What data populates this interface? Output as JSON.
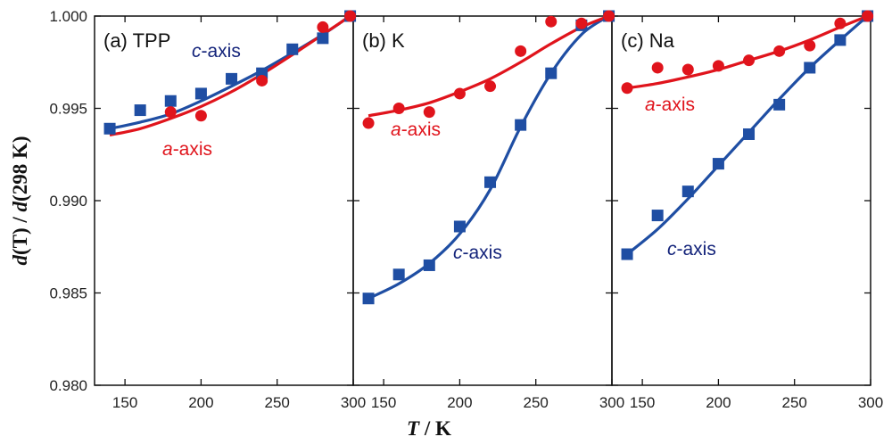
{
  "colors": {
    "a_axis": "#e0141c",
    "c_axis": "#1f4ea3",
    "c_label": "#13237a",
    "frame": "#111111"
  },
  "axes": {
    "xlabel_var": "T",
    "xlabel_unit": " / K",
    "ylabel_d1": "d",
    "ylabel_T": "(T)",
    "ylabel_sep": " / ",
    "ylabel_d2": "d",
    "ylabel_ref": "(298 K)",
    "ylim": [
      0.98,
      1.0
    ],
    "yticks": [
      "0.980",
      "0.985",
      "0.990",
      "0.995",
      "1.000"
    ],
    "ytick_values": [
      0.98,
      0.985,
      0.99,
      0.995,
      1.0
    ]
  },
  "chart_data": [
    {
      "type": "scatter",
      "panel": "(a) TPP",
      "xlim": [
        130,
        300
      ],
      "xticks": [
        "150",
        "200",
        "250",
        "300"
      ],
      "xtick_values": [
        150,
        200,
        250,
        300
      ],
      "series": [
        {
          "name": "c-axis",
          "marker": "square",
          "points": [
            [
              140,
              0.9939
            ],
            [
              160,
              0.9949
            ],
            [
              180,
              0.9954
            ],
            [
              200,
              0.9958
            ],
            [
              220,
              0.9966
            ],
            [
              240,
              0.9969
            ],
            [
              260,
              0.9982
            ],
            [
              280,
              0.9988
            ],
            [
              298,
              1.0
            ]
          ],
          "fit": [
            [
              140,
              0.9939
            ],
            [
              160,
              0.99425
            ],
            [
              180,
              0.9947
            ],
            [
              200,
              0.9954
            ],
            [
              220,
              0.9962
            ],
            [
              240,
              0.99705
            ],
            [
              260,
              0.998
            ],
            [
              280,
              0.999
            ],
            [
              298,
              1.0
            ]
          ]
        },
        {
          "name": "a-axis",
          "marker": "circle",
          "points": [
            [
              180,
              0.9948
            ],
            [
              200,
              0.9946
            ],
            [
              240,
              0.9965
            ],
            [
              280,
              0.9994
            ],
            [
              298,
              1.0
            ]
          ],
          "fit": [
            [
              140,
              0.99355
            ],
            [
              160,
              0.9939
            ],
            [
              180,
              0.99445
            ],
            [
              200,
              0.9951
            ],
            [
              220,
              0.9959
            ],
            [
              240,
              0.99685
            ],
            [
              260,
              0.9979
            ],
            [
              280,
              0.999
            ],
            [
              298,
              1.0
            ]
          ]
        }
      ],
      "labels": {
        "c_axis": {
          "italic": "c",
          "rest": "-axis"
        },
        "a_axis": {
          "italic": "a",
          "rest": "-axis"
        }
      }
    },
    {
      "type": "scatter",
      "panel": "(b) K",
      "xlim": [
        130,
        300
      ],
      "xticks": [
        "150",
        "200",
        "250",
        "300"
      ],
      "xtick_values": [
        150,
        200,
        250,
        300
      ],
      "series": [
        {
          "name": "c-axis",
          "marker": "square",
          "points": [
            [
              140,
              0.9847
            ],
            [
              160,
              0.986
            ],
            [
              180,
              0.9865
            ],
            [
              200,
              0.9886
            ],
            [
              220,
              0.991
            ],
            [
              240,
              0.9941
            ],
            [
              260,
              0.9969
            ],
            [
              280,
              0.9995
            ],
            [
              298,
              1.0
            ]
          ],
          "fit": [
            [
              140,
              0.9847
            ],
            [
              160,
              0.9855
            ],
            [
              180,
              0.9866
            ],
            [
              200,
              0.9882
            ],
            [
              220,
              0.9906
            ],
            [
              240,
              0.994
            ],
            [
              260,
              0.9969
            ],
            [
              280,
              0.999
            ],
            [
              298,
              1.0
            ]
          ]
        },
        {
          "name": "a-axis",
          "marker": "circle",
          "points": [
            [
              140,
              0.9942
            ],
            [
              160,
              0.995
            ],
            [
              180,
              0.9948
            ],
            [
              200,
              0.9958
            ],
            [
              220,
              0.9962
            ],
            [
              240,
              0.9981
            ],
            [
              260,
              0.9997
            ],
            [
              280,
              0.9996
            ],
            [
              298,
              1.0
            ]
          ],
          "fit": [
            [
              140,
              0.9946
            ],
            [
              160,
              0.9949
            ],
            [
              180,
              0.9953
            ],
            [
              200,
              0.9959
            ],
            [
              220,
              0.9966
            ],
            [
              240,
              0.9975
            ],
            [
              260,
              0.9985
            ],
            [
              280,
              0.9994
            ],
            [
              298,
              1.0
            ]
          ]
        }
      ],
      "labels": {
        "c_axis": {
          "italic": "c",
          "rest": "-axis"
        },
        "a_axis": {
          "italic": "a",
          "rest": "-axis"
        }
      }
    },
    {
      "type": "scatter",
      "panel": "(c) Na",
      "xlim": [
        130,
        300
      ],
      "xticks": [
        "150",
        "200",
        "250",
        "300"
      ],
      "xtick_values": [
        150,
        200,
        250,
        300
      ],
      "series": [
        {
          "name": "c-axis",
          "marker": "square",
          "points": [
            [
              140,
              0.9871
            ],
            [
              160,
              0.9892
            ],
            [
              180,
              0.9905
            ],
            [
              200,
              0.992
            ],
            [
              220,
              0.9936
            ],
            [
              240,
              0.9952
            ],
            [
              260,
              0.9972
            ],
            [
              280,
              0.9987
            ],
            [
              298,
              1.0
            ]
          ],
          "fit": [
            [
              140,
              0.9871
            ],
            [
              160,
              0.98845
            ],
            [
              180,
              0.9901
            ],
            [
              200,
              0.9919
            ],
            [
              220,
              0.9937
            ],
            [
              240,
              0.9955
            ],
            [
              260,
              0.9972
            ],
            [
              280,
              0.9987
            ],
            [
              298,
              1.0
            ]
          ]
        },
        {
          "name": "a-axis",
          "marker": "circle",
          "points": [
            [
              140,
              0.9961
            ],
            [
              160,
              0.9972
            ],
            [
              180,
              0.9971
            ],
            [
              200,
              0.9973
            ],
            [
              220,
              0.9976
            ],
            [
              240,
              0.9981
            ],
            [
              260,
              0.9984
            ],
            [
              280,
              0.9996
            ],
            [
              298,
              1.0
            ]
          ],
          "fit": [
            [
              140,
              0.9961
            ],
            [
              160,
              0.99635
            ],
            [
              180,
              0.9967
            ],
            [
              200,
              0.9971
            ],
            [
              220,
              0.9976
            ],
            [
              240,
              0.9981
            ],
            [
              260,
              0.9987
            ],
            [
              280,
              0.9994
            ],
            [
              298,
              1.0
            ]
          ]
        }
      ],
      "labels": {
        "c_axis": {
          "italic": "c",
          "rest": "-axis"
        },
        "a_axis": {
          "italic": "a",
          "rest": "-axis"
        }
      }
    }
  ]
}
